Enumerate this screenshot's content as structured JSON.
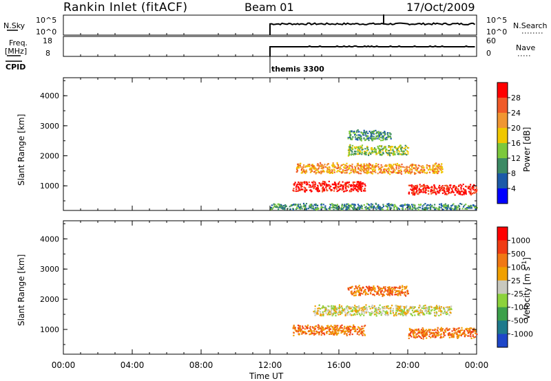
{
  "header": {
    "title": "Rankin Inlet (fitACF)",
    "beam": "Beam 01",
    "date": "17/Oct/2009"
  },
  "status_panels": {
    "nsky": {
      "label": "N.Sky",
      "ticks_left": [
        "10^5",
        "10^0"
      ],
      "right_label": "N.Search",
      "ticks_right": [
        "10^5",
        "10^0"
      ]
    },
    "freq": {
      "label_line1": "Freq.",
      "label_line2": "[MHz]",
      "ticks_left": [
        "18",
        "8"
      ],
      "right_label": "Nave",
      "ticks_right": [
        "60",
        "0"
      ]
    },
    "cpid": {
      "label": "CPID",
      "program": "themis 3300"
    }
  },
  "time_axis": {
    "label": "Time UT",
    "tick_labels": [
      "00:00",
      "04:00",
      "08:00",
      "12:00",
      "16:00",
      "20:00",
      "00:00"
    ]
  },
  "chart_data": [
    {
      "type": "heatmap",
      "name": "power",
      "ylabel": "Slant Range [km]",
      "y_tick_labels": [
        "1000",
        "2000",
        "3000",
        "4000"
      ],
      "ylim": [
        180,
        4600
      ],
      "xlim_hours": [
        0,
        24
      ],
      "data_start_hour": 12,
      "colorbar": {
        "label": "Power [dB]",
        "tick_labels": [
          "4",
          "8",
          "12",
          "16",
          "20",
          "24",
          "28"
        ],
        "colors": [
          "#0000ff",
          "#1c5aa8",
          "#3c8a64",
          "#7cc83c",
          "#f0c800",
          "#f09632",
          "#f05a28",
          "#ff0000"
        ]
      },
      "features": [
        {
          "t_start": 12.0,
          "t_end": 24.0,
          "range_km": 250,
          "note": "near-range scatter",
          "level": 2
        },
        {
          "t_start": 13.3,
          "t_end": 17.5,
          "range_km": 1000,
          "level": 7
        },
        {
          "t_start": 13.5,
          "t_end": 22.0,
          "range_km": 1600,
          "level": 5
        },
        {
          "t_start": 16.5,
          "t_end": 20.0,
          "range_km": 2200,
          "level": 3
        },
        {
          "t_start": 16.5,
          "t_end": 19.0,
          "range_km": 2700,
          "level": 2
        },
        {
          "t_start": 20.0,
          "t_end": 24.0,
          "range_km": 900,
          "level": 7
        }
      ]
    },
    {
      "type": "heatmap",
      "name": "velocity",
      "ylabel": "Slant Range [km]",
      "y_tick_labels": [
        "1000",
        "2000",
        "3000",
        "4000"
      ],
      "ylim": [
        180,
        4600
      ],
      "xlim_hours": [
        0,
        24
      ],
      "data_start_hour": 12,
      "colorbar": {
        "label": "Velocity [m s^-1]",
        "tick_labels": [
          "1000",
          "500",
          "100",
          "25",
          "-25",
          "-100",
          "-500",
          "-1000"
        ],
        "colors": [
          "#1e46c8",
          "#1e7a8c",
          "#3ca04b",
          "#8cd23c",
          "#c8c8be",
          "#f0a000",
          "#f07814",
          "#f03c14",
          "#ff0000"
        ]
      },
      "features": [
        {
          "t_start": 13.3,
          "t_end": 17.5,
          "range_km": 1000,
          "level": 6
        },
        {
          "t_start": 14.5,
          "t_end": 22.5,
          "range_km": 1650,
          "level": 4
        },
        {
          "t_start": 16.5,
          "t_end": 20.0,
          "range_km": 2300,
          "level": 6
        },
        {
          "t_start": 20.0,
          "t_end": 24.0,
          "range_km": 900,
          "level": 6
        }
      ]
    }
  ]
}
